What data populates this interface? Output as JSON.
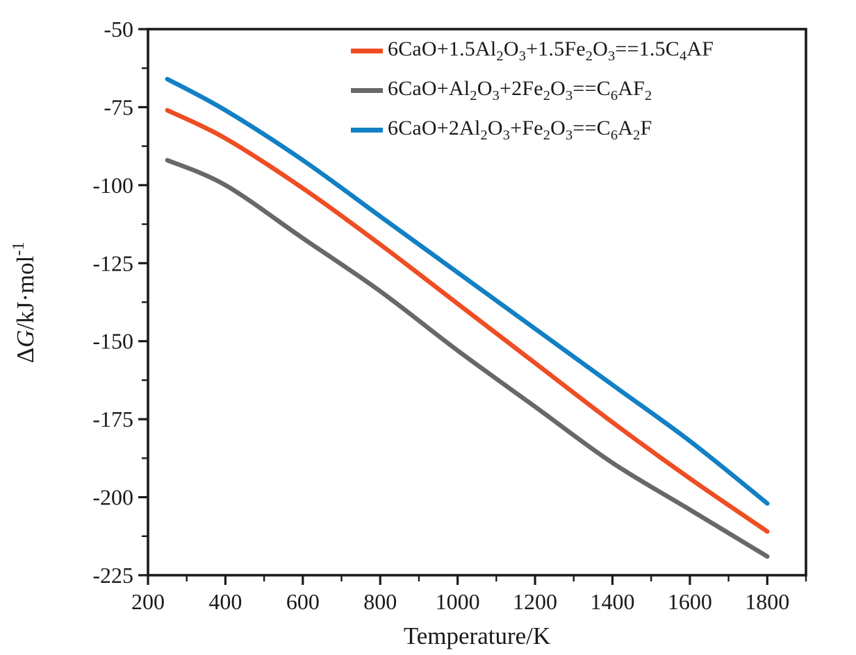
{
  "figure": {
    "background": "#ffffff",
    "axis_color": "#1a1a1a"
  },
  "chart_data": {
    "type": "line",
    "title": "",
    "xlabel": "Temperature/K",
    "ylabel_rich": "Δ*G*/kJ·mol^{-1}",
    "xlim": [
      200,
      1900
    ],
    "ylim": [
      -225,
      -50
    ],
    "x_major_ticks": [
      200,
      400,
      600,
      800,
      1000,
      1200,
      1400,
      1600,
      1800
    ],
    "x_minor_ticks": [
      300,
      500,
      700,
      900,
      1100,
      1300,
      1500,
      1700,
      1900
    ],
    "y_major_ticks": [
      -225,
      -200,
      -175,
      -150,
      -125,
      -100,
      -75,
      -50
    ],
    "y_minor_ticks": [
      -212.5,
      -187.5,
      -162.5,
      -137.5,
      -112.5,
      -87.5,
      -62.5
    ],
    "grid": false,
    "legend_position": "top-center-inside",
    "x": [
      250,
      400,
      600,
      800,
      1000,
      1200,
      1400,
      1600,
      1800
    ],
    "series": [
      {
        "name": "6CaO+1.5Al2O3+1.5Fe2O3==1.5C4AF",
        "color": "#EF4D23",
        "values": [
          -76,
          -85,
          -101,
          -119,
          -138,
          -157,
          -176,
          -194,
          -211
        ]
      },
      {
        "name": "6CaO+Al2O3+2Fe2O3==C6AF2",
        "color": "#686868",
        "values": [
          -92,
          -100,
          -117,
          -134,
          -153,
          -171,
          -189,
          -204,
          -219
        ]
      },
      {
        "name": "6CaO+2Al2O3+Fe2O3==C6A2F",
        "color": "#1280C4",
        "values": [
          -66,
          -76,
          -92,
          -110,
          -128,
          -146,
          -164,
          -182,
          -202
        ]
      }
    ]
  },
  "legend": {
    "items": [
      {
        "label_rich": "6CaO+1.5Al_{2}O_{3}+1.5Fe_{2}O_{3}==1.5C_{4}AF",
        "color": "#EF4D23"
      },
      {
        "label_rich": "6CaO+Al_{2}O_{3}+2Fe_{2}O_{3}==C_{6}AF_{2}",
        "color": "#686868"
      },
      {
        "label_rich": "6CaO+2Al_{2}O_{3}+Fe_{2}O_{3}==C_{6}A_{2}F",
        "color": "#1280C4"
      }
    ]
  }
}
